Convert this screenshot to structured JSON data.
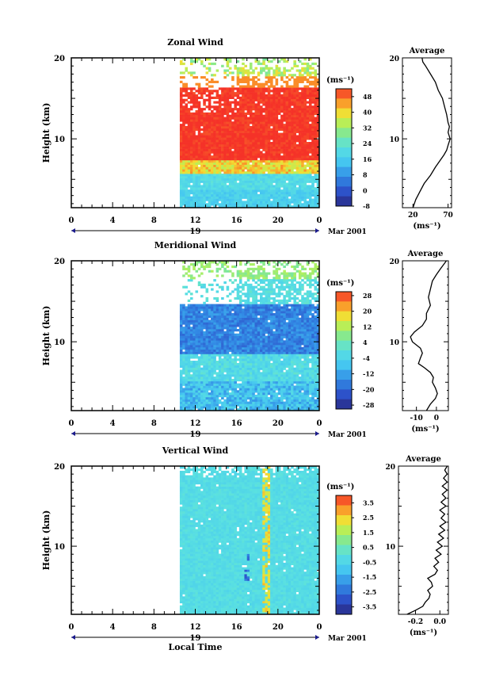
{
  "chart_data": [
    {
      "type": "heatmap",
      "title": "Zonal Wind",
      "ylabel": "Height (km)",
      "xlabel": "",
      "x_ticks": [
        "0",
        "4",
        "8",
        "12",
        "16",
        "20",
        "0"
      ],
      "y_ticks": [
        "10",
        "20"
      ],
      "xlim": [
        0,
        24
      ],
      "ylim": [
        1.5,
        20
      ],
      "date_label": "Mar 2001",
      "day_label": "19",
      "colorbar": {
        "unit": "(ms⁻¹)",
        "ticks": [
          "-8",
          "0",
          "8",
          "16",
          "24",
          "32",
          "40",
          "48"
        ],
        "range": [
          -8,
          52
        ]
      },
      "data_start_hour": 10.5,
      "pattern": "zonal",
      "profile": {
        "title": "Average",
        "xticks": [
          "20",
          "70"
        ],
        "xlim": [
          5,
          75
        ],
        "xlabel": "(ms⁻¹)",
        "yticks": [
          "10",
          "20"
        ],
        "points": [
          [
            20,
            1.5
          ],
          [
            24,
            2.5
          ],
          [
            30,
            3.5
          ],
          [
            36,
            4.5
          ],
          [
            45,
            5.5
          ],
          [
            52,
            6.5
          ],
          [
            60,
            7.5
          ],
          [
            64,
            8.0
          ],
          [
            68,
            8.6
          ],
          [
            70,
            9.2
          ],
          [
            73,
            10.0
          ],
          [
            70,
            10.8
          ],
          [
            72,
            11.5
          ],
          [
            70,
            12.0
          ],
          [
            68,
            13.0
          ],
          [
            65,
            14.0
          ],
          [
            62,
            15.0
          ],
          [
            56,
            16.0
          ],
          [
            52,
            17.0
          ],
          [
            45,
            18.0
          ],
          [
            38,
            19.0
          ],
          [
            34,
            19.5
          ],
          [
            33,
            20.0
          ]
        ]
      }
    },
    {
      "type": "heatmap",
      "title": "Meridional Wind",
      "ylabel": "Height (km)",
      "xlabel": "",
      "x_ticks": [
        "0",
        "4",
        "8",
        "12",
        "16",
        "20",
        "0"
      ],
      "y_ticks": [
        "10",
        "20"
      ],
      "xlim": [
        0,
        24
      ],
      "ylim": [
        1.5,
        20
      ],
      "date_label": "Mar 2001",
      "day_label": "19",
      "colorbar": {
        "unit": "(ms⁻¹)",
        "ticks": [
          "-28",
          "-20",
          "-12",
          "-4",
          "4",
          "12",
          "20",
          "28"
        ],
        "range": [
          -30,
          30
        ]
      },
      "data_start_hour": 10.5,
      "pattern": "meridional",
      "profile": {
        "title": "Average",
        "xticks": [
          "-10",
          "0"
        ],
        "xlim": [
          -17,
          6
        ],
        "xlabel": "(ms⁻¹)",
        "yticks": [
          "10",
          "20"
        ],
        "points": [
          [
            -5,
            1.5
          ],
          [
            -3,
            2.3
          ],
          [
            -0.5,
            3.0
          ],
          [
            0.5,
            3.6
          ],
          [
            -0.5,
            4.3
          ],
          [
            -2,
            5.0
          ],
          [
            -1.5,
            5.6
          ],
          [
            -3,
            6.2
          ],
          [
            -6,
            6.8
          ],
          [
            -9,
            7.3
          ],
          [
            -8,
            8.0
          ],
          [
            -7,
            8.6
          ],
          [
            -8,
            9.2
          ],
          [
            -12,
            10.0
          ],
          [
            -13,
            10.6
          ],
          [
            -11,
            11.2
          ],
          [
            -7,
            12.0
          ],
          [
            -5,
            12.8
          ],
          [
            -5,
            13.5
          ],
          [
            -3,
            14.5
          ],
          [
            -4,
            15.5
          ],
          [
            -3,
            16.5
          ],
          [
            -2,
            17.5
          ],
          [
            0,
            18.3
          ],
          [
            2,
            19.0
          ],
          [
            5,
            20.0
          ]
        ]
      }
    },
    {
      "type": "heatmap",
      "title": "Vertical Wind",
      "ylabel": "Height (km)",
      "xlabel": "Local Time",
      "x_ticks": [
        "0",
        "4",
        "8",
        "12",
        "16",
        "20",
        "0"
      ],
      "y_ticks": [
        "10",
        "20"
      ],
      "xlim": [
        0,
        24
      ],
      "ylim": [
        1.5,
        20
      ],
      "date_label": "Mar 2001",
      "day_label": "19",
      "colorbar": {
        "unit": "(ms⁻¹)",
        "ticks": [
          "-3.5",
          "-2.5",
          "-1.5",
          "-0.5",
          "0.5",
          "1.5",
          "2.5",
          "3.5"
        ],
        "range": [
          -4,
          4
        ]
      },
      "data_start_hour": 10.5,
      "pattern": "vertical",
      "profile": {
        "title": "Average",
        "xticks": [
          "-0.2",
          "0.0"
        ],
        "xlim": [
          -0.34,
          0.07
        ],
        "xlabel": "(ms⁻¹)",
        "yticks": [
          "10",
          "20"
        ],
        "points": [
          [
            -0.27,
            1.5
          ],
          [
            -0.2,
            2.0
          ],
          [
            -0.14,
            2.5
          ],
          [
            -0.12,
            3.0
          ],
          [
            -0.09,
            3.5
          ],
          [
            -0.08,
            4.0
          ],
          [
            -0.1,
            4.5
          ],
          [
            -0.06,
            5.0
          ],
          [
            -0.07,
            5.5
          ],
          [
            -0.1,
            6.0
          ],
          [
            -0.04,
            6.5
          ],
          [
            -0.02,
            7.0
          ],
          [
            -0.05,
            7.5
          ],
          [
            -0.01,
            8.0
          ],
          [
            -0.04,
            8.5
          ],
          [
            0.01,
            9.0
          ],
          [
            -0.03,
            9.5
          ],
          [
            0.02,
            10.0
          ],
          [
            -0.02,
            10.5
          ],
          [
            0.03,
            11.0
          ],
          [
            -0.01,
            11.5
          ],
          [
            0.04,
            12.0
          ],
          [
            0.0,
            12.5
          ],
          [
            0.05,
            13.0
          ],
          [
            0.01,
            13.5
          ],
          [
            0.04,
            14.0
          ],
          [
            0.0,
            14.5
          ],
          [
            0.05,
            15.0
          ],
          [
            0.01,
            15.5
          ],
          [
            0.05,
            16.0
          ],
          [
            0.02,
            16.5
          ],
          [
            0.06,
            17.0
          ],
          [
            0.02,
            17.5
          ],
          [
            0.06,
            18.0
          ],
          [
            0.03,
            18.5
          ],
          [
            0.06,
            19.0
          ],
          [
            0.04,
            19.5
          ],
          [
            0.06,
            20.0
          ]
        ]
      }
    }
  ]
}
